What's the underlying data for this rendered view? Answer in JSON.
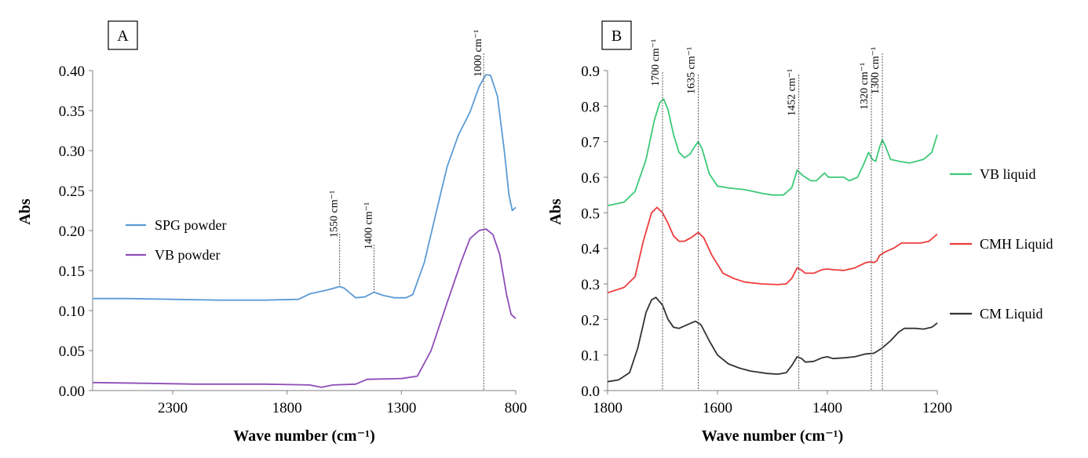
{
  "chart_data": [
    {
      "panel": "A",
      "type": "line",
      "xlabel": "Wave number (cm⁻¹)",
      "ylabel": "Abs",
      "xlim": [
        2650,
        800
      ],
      "ylim": [
        0,
        0.4
      ],
      "xticks": [
        2300,
        1800,
        1300,
        800
      ],
      "yticks": [
        "0.00",
        "0.05",
        "0.10",
        "0.15",
        "0.20",
        "0.25",
        "0.30",
        "0.35",
        "0.40"
      ],
      "legend_position": "middle-left",
      "series": [
        {
          "name": "SPG powder",
          "color": "#5B9BD5",
          "points": [
            [
              2650,
              0.115
            ],
            [
              2500,
              0.115
            ],
            [
              2300,
              0.114
            ],
            [
              2100,
              0.113
            ],
            [
              1900,
              0.113
            ],
            [
              1750,
              0.114
            ],
            [
              1700,
              0.121
            ],
            [
              1620,
              0.126
            ],
            [
              1570,
              0.13
            ],
            [
              1550,
              0.128
            ],
            [
              1500,
              0.116
            ],
            [
              1460,
              0.117
            ],
            [
              1420,
              0.123
            ],
            [
              1380,
              0.119
            ],
            [
              1330,
              0.116
            ],
            [
              1280,
              0.116
            ],
            [
              1250,
              0.12
            ],
            [
              1200,
              0.16
            ],
            [
              1150,
              0.22
            ],
            [
              1100,
              0.28
            ],
            [
              1050,
              0.32
            ],
            [
              1000,
              0.348
            ],
            [
              960,
              0.38
            ],
            [
              930,
              0.395
            ],
            [
              910,
              0.394
            ],
            [
              880,
              0.368
            ],
            [
              850,
              0.3
            ],
            [
              830,
              0.245
            ],
            [
              815,
              0.225
            ],
            [
              800,
              0.229
            ]
          ]
        },
        {
          "name": "VB powder",
          "color": "#8E4DB8",
          "points": [
            [
              2650,
              0.01
            ],
            [
              2400,
              0.009
            ],
            [
              2200,
              0.008
            ],
            [
              1900,
              0.008
            ],
            [
              1700,
              0.007
            ],
            [
              1650,
              0.004
            ],
            [
              1600,
              0.007
            ],
            [
              1500,
              0.008
            ],
            [
              1450,
              0.014
            ],
            [
              1300,
              0.015
            ],
            [
              1230,
              0.018
            ],
            [
              1170,
              0.05
            ],
            [
              1100,
              0.11
            ],
            [
              1040,
              0.16
            ],
            [
              1000,
              0.19
            ],
            [
              960,
              0.2
            ],
            [
              930,
              0.202
            ],
            [
              900,
              0.195
            ],
            [
              870,
              0.17
            ],
            [
              840,
              0.12
            ],
            [
              820,
              0.095
            ],
            [
              800,
              0.09
            ]
          ]
        }
      ],
      "annotations": [
        "1550 cm⁻¹",
        "1400 cm⁻¹",
        "1000 cm⁻¹"
      ],
      "annotation_positions": [
        1570,
        1420,
        940
      ]
    },
    {
      "panel": "B",
      "type": "line",
      "xlabel": "Wave number (cm⁻¹)",
      "ylabel": "Abs",
      "xlim": [
        1800,
        1200
      ],
      "ylim": [
        0,
        0.9
      ],
      "xticks": [
        1800,
        1600,
        1400,
        1200
      ],
      "yticks": [
        "0.0",
        "0.1",
        "0.2",
        "0.3",
        "0.4",
        "0.5",
        "0.6",
        "0.7",
        "0.8",
        "0.9"
      ],
      "legend_position": "right",
      "series": [
        {
          "name": "VB liquid",
          "color": "#3CC978",
          "points": [
            [
              1800,
              0.52
            ],
            [
              1770,
              0.53
            ],
            [
              1750,
              0.56
            ],
            [
              1730,
              0.65
            ],
            [
              1715,
              0.76
            ],
            [
              1705,
              0.81
            ],
            [
              1698,
              0.82
            ],
            [
              1690,
              0.79
            ],
            [
              1680,
              0.72
            ],
            [
              1670,
              0.67
            ],
            [
              1660,
              0.655
            ],
            [
              1650,
              0.665
            ],
            [
              1640,
              0.69
            ],
            [
              1635,
              0.7
            ],
            [
              1628,
              0.68
            ],
            [
              1615,
              0.61
            ],
            [
              1600,
              0.575
            ],
            [
              1580,
              0.57
            ],
            [
              1550,
              0.565
            ],
            [
              1520,
              0.555
            ],
            [
              1500,
              0.55
            ],
            [
              1480,
              0.55
            ],
            [
              1465,
              0.57
            ],
            [
              1455,
              0.62
            ],
            [
              1445,
              0.605
            ],
            [
              1430,
              0.59
            ],
            [
              1420,
              0.59
            ],
            [
              1410,
              0.605
            ],
            [
              1405,
              0.612
            ],
            [
              1398,
              0.6
            ],
            [
              1390,
              0.6
            ],
            [
              1380,
              0.6
            ],
            [
              1370,
              0.6
            ],
            [
              1360,
              0.59
            ],
            [
              1345,
              0.6
            ],
            [
              1333,
              0.64
            ],
            [
              1325,
              0.67
            ],
            [
              1318,
              0.65
            ],
            [
              1312,
              0.645
            ],
            [
              1305,
              0.685
            ],
            [
              1300,
              0.705
            ],
            [
              1295,
              0.69
            ],
            [
              1285,
              0.65
            ],
            [
              1270,
              0.645
            ],
            [
              1250,
              0.64
            ],
            [
              1225,
              0.65
            ],
            [
              1210,
              0.67
            ],
            [
              1200,
              0.72
            ]
          ]
        },
        {
          "name": "CMH Liquid",
          "color": "#EE3B3B",
          "points": [
            [
              1800,
              0.275
            ],
            [
              1770,
              0.29
            ],
            [
              1750,
              0.32
            ],
            [
              1735,
              0.42
            ],
            [
              1720,
              0.5
            ],
            [
              1710,
              0.515
            ],
            [
              1700,
              0.5
            ],
            [
              1690,
              0.47
            ],
            [
              1680,
              0.435
            ],
            [
              1670,
              0.42
            ],
            [
              1660,
              0.42
            ],
            [
              1648,
              0.43
            ],
            [
              1635,
              0.445
            ],
            [
              1625,
              0.43
            ],
            [
              1610,
              0.38
            ],
            [
              1590,
              0.33
            ],
            [
              1570,
              0.315
            ],
            [
              1550,
              0.305
            ],
            [
              1520,
              0.3
            ],
            [
              1490,
              0.298
            ],
            [
              1475,
              0.3
            ],
            [
              1465,
              0.315
            ],
            [
              1455,
              0.345
            ],
            [
              1448,
              0.34
            ],
            [
              1440,
              0.33
            ],
            [
              1425,
              0.33
            ],
            [
              1410,
              0.34
            ],
            [
              1400,
              0.342
            ],
            [
              1390,
              0.34
            ],
            [
              1370,
              0.338
            ],
            [
              1350,
              0.345
            ],
            [
              1330,
              0.36
            ],
            [
              1322,
              0.362
            ],
            [
              1315,
              0.36
            ],
            [
              1310,
              0.365
            ],
            [
              1305,
              0.38
            ],
            [
              1295,
              0.39
            ],
            [
              1280,
              0.4
            ],
            [
              1265,
              0.415
            ],
            [
              1250,
              0.415
            ],
            [
              1230,
              0.415
            ],
            [
              1215,
              0.42
            ],
            [
              1200,
              0.44
            ]
          ]
        },
        {
          "name": "CM Liquid",
          "color": "#333333",
          "points": [
            [
              1800,
              0.025
            ],
            [
              1780,
              0.03
            ],
            [
              1760,
              0.05
            ],
            [
              1745,
              0.12
            ],
            [
              1730,
              0.22
            ],
            [
              1720,
              0.255
            ],
            [
              1712,
              0.262
            ],
            [
              1700,
              0.24
            ],
            [
              1690,
              0.2
            ],
            [
              1680,
              0.178
            ],
            [
              1670,
              0.175
            ],
            [
              1655,
              0.185
            ],
            [
              1640,
              0.195
            ],
            [
              1630,
              0.185
            ],
            [
              1615,
              0.14
            ],
            [
              1600,
              0.1
            ],
            [
              1580,
              0.075
            ],
            [
              1560,
              0.063
            ],
            [
              1540,
              0.055
            ],
            [
              1510,
              0.048
            ],
            [
              1490,
              0.046
            ],
            [
              1475,
              0.05
            ],
            [
              1465,
              0.07
            ],
            [
              1455,
              0.095
            ],
            [
              1447,
              0.09
            ],
            [
              1440,
              0.08
            ],
            [
              1425,
              0.082
            ],
            [
              1410,
              0.092
            ],
            [
              1400,
              0.095
            ],
            [
              1390,
              0.09
            ],
            [
              1370,
              0.092
            ],
            [
              1350,
              0.095
            ],
            [
              1330,
              0.103
            ],
            [
              1315,
              0.105
            ],
            [
              1300,
              0.12
            ],
            [
              1285,
              0.14
            ],
            [
              1270,
              0.165
            ],
            [
              1260,
              0.175
            ],
            [
              1240,
              0.175
            ],
            [
              1225,
              0.173
            ],
            [
              1210,
              0.178
            ],
            [
              1200,
              0.19
            ]
          ]
        }
      ],
      "annotations": [
        "1700 cm⁻¹",
        "1635 cm⁻¹",
        "1452 cm⁻¹",
        "1320 cm⁻¹",
        "1300 cm⁻¹"
      ],
      "annotation_positions": [
        1700,
        1635,
        1452,
        1320,
        1300
      ]
    }
  ]
}
